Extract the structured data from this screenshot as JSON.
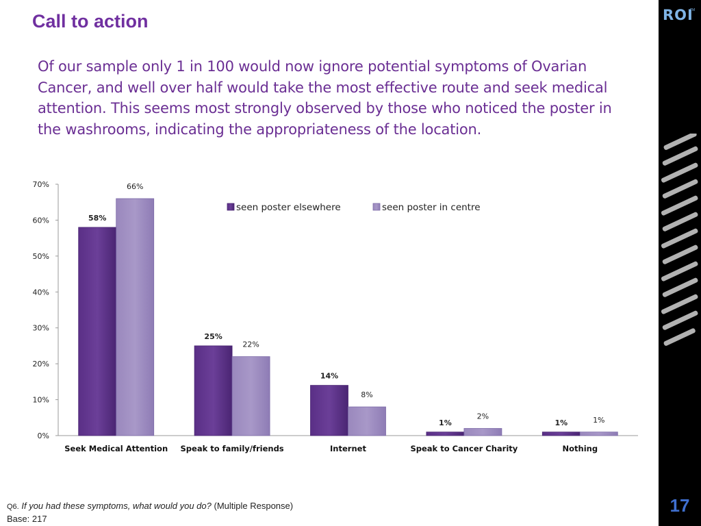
{
  "slide": {
    "title": "Call to action",
    "intro": "Of our sample only 1 in 100 would now ignore potential symptoms of Ovarian Cancer, and well over half would take the most effective route and seek medical attention. This seems most strongly observed by those who noticed the poster in the washrooms, indicating the appropriateness of the location.",
    "page_number": "17",
    "logo": "ROI",
    "logo_tm": "TM"
  },
  "footnote": {
    "q_label": "Q6.",
    "question": "If you had these symptoms, what would you do?",
    "note": "(Multiple Response)",
    "base": "Base: 217"
  },
  "colors": {
    "title": "#7030a0",
    "series1": "#6b3f98",
    "series2": "#a898c8",
    "page_number": "#3f6fcf"
  },
  "chart_data": {
    "type": "bar",
    "categories": [
      "Seek Medical Attention",
      "Speak to family/friends",
      "Internet",
      "Speak to Cancer Charity",
      "Nothing"
    ],
    "series": [
      {
        "name": "seen poster elsewhere",
        "values": [
          58,
          25,
          14,
          1,
          1
        ],
        "labels": [
          "58%",
          "25%",
          "14%",
          "1%",
          "1%"
        ]
      },
      {
        "name": "seen poster in centre",
        "values": [
          66,
          22,
          8,
          2,
          1
        ],
        "labels": [
          "66%",
          "22%",
          "8%",
          "2%",
          "1%"
        ]
      }
    ],
    "ylim": [
      0,
      70
    ],
    "yticks": [
      0,
      10,
      20,
      30,
      40,
      50,
      60,
      70
    ],
    "ytick_labels": [
      "0%",
      "10%",
      "20%",
      "30%",
      "40%",
      "50%",
      "60%",
      "70%"
    ],
    "legend_position": "top-center",
    "grid": false,
    "title": "",
    "xlabel": "",
    "ylabel": ""
  }
}
